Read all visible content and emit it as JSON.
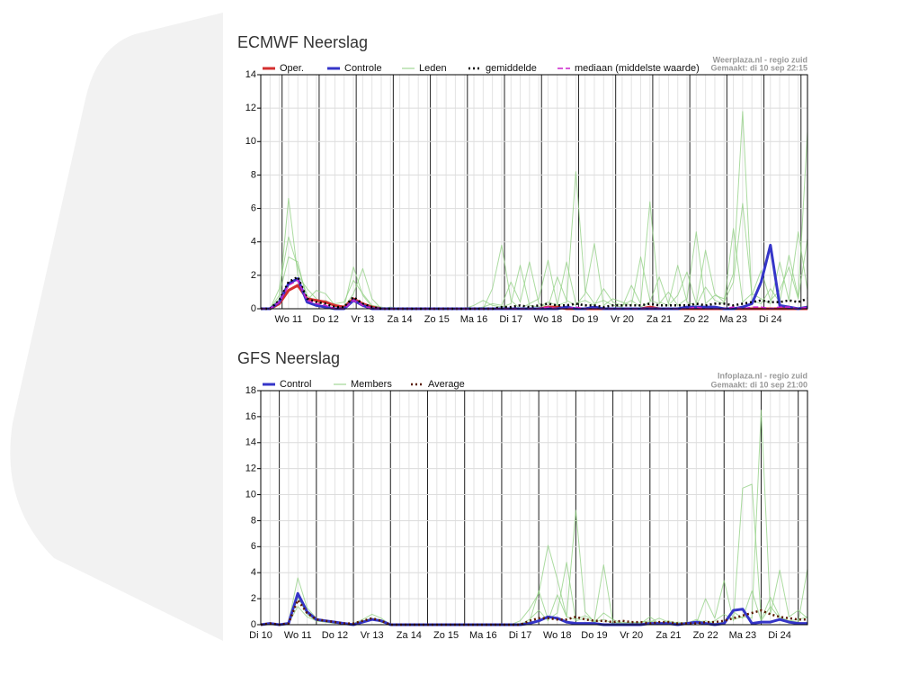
{
  "chart_data": [
    {
      "type": "line",
      "title": "ECMWF Neerslag",
      "annotations": [
        "Weerplaza.nl - regio zuid",
        "Gemaakt: di 10 sep 22:15"
      ],
      "categories": [
        null,
        null,
        null,
        "Wo 11",
        null,
        null,
        null,
        "Do 12",
        null,
        null,
        null,
        "Vr 13",
        null,
        null,
        null,
        "Za 14",
        null,
        null,
        null,
        "Zo 15",
        null,
        null,
        null,
        "Ma 16",
        null,
        null,
        null,
        "Di 17",
        null,
        null,
        null,
        "Wo 18",
        null,
        null,
        null,
        "Do 19",
        null,
        null,
        null,
        "Vr 20",
        null,
        null,
        null,
        "Za 21",
        null,
        null,
        null,
        "Zo 22",
        null,
        null,
        null,
        "Ma 23",
        null,
        null,
        null,
        "Di 24",
        null,
        null,
        null,
        null
      ],
      "ylim": [
        0,
        14
      ],
      "yticks": [
        0,
        2,
        4,
        6,
        8,
        10,
        12,
        14
      ],
      "grid": true,
      "series": [
        {
          "name": "Oper.",
          "color": "#d42f2f",
          "width": 3,
          "values": [
            0,
            0,
            0.3,
            1.1,
            1.4,
            0.6,
            0.5,
            0.4,
            0.2,
            0.1,
            0.6,
            0.3,
            0.1,
            0,
            0,
            0,
            0,
            0,
            0,
            0,
            0,
            0,
            0,
            0,
            0,
            0,
            0,
            0,
            0,
            0,
            0,
            0.1,
            0.1,
            0,
            0,
            0,
            0,
            0,
            0,
            0,
            0,
            0,
            0.1,
            0,
            0,
            0,
            0,
            0,
            0,
            0,
            0,
            0,
            0,
            0,
            0,
            0,
            0,
            0,
            0,
            0
          ]
        },
        {
          "name": "Controle",
          "color": "#3535c8",
          "width": 3,
          "values": [
            0,
            0,
            0.4,
            1.5,
            1.8,
            0.4,
            0.2,
            0.1,
            0,
            0,
            0.5,
            0.2,
            0,
            0,
            0,
            0,
            0,
            0,
            0,
            0,
            0,
            0,
            0,
            0,
            0,
            0,
            0,
            0,
            0,
            0,
            0,
            0,
            0,
            0.1,
            0,
            0,
            0.1,
            0,
            0,
            0,
            0,
            0,
            0,
            0,
            0,
            0,
            0.1,
            0.1,
            0.1,
            0.1,
            0,
            0,
            0.1,
            0.3,
            1.6,
            3.8,
            0.2,
            0.1,
            0,
            0.1
          ]
        },
        {
          "name": "Leden",
          "color": "#8fcf80",
          "width": 1,
          "values": [
            0,
            0,
            1.2,
            4.3,
            2.5,
            0.8,
            0.4,
            0.5,
            0.2,
            0.1,
            0.9,
            2.4,
            0.6,
            0,
            0,
            0,
            0,
            0,
            0,
            0,
            0,
            0,
            0,
            0,
            0,
            1.2,
            3.8,
            0.5,
            0,
            0.3,
            0.6,
            2.9,
            0.2,
            0.4,
            8.2,
            1.1,
            0.3,
            0.5,
            0.2,
            0.1,
            1.4,
            0.3,
            6.4,
            0.4,
            0.2,
            0.8,
            2.2,
            0.3,
            3.5,
            0.9,
            0.4,
            1.6,
            6.3,
            0.8,
            2.3,
            0.5,
            1.1,
            2.5,
            0.6,
            4.2
          ]
        },
        {
          "name": "Leden",
          "color": "#8fcf80",
          "width": 1,
          "values": [
            0,
            0,
            0.6,
            6.6,
            2.0,
            1.2,
            0.6,
            0.3,
            0.3,
            0.4,
            1.7,
            0.9,
            0.2,
            0.1,
            0,
            0,
            0,
            0,
            0,
            0,
            0,
            0,
            0,
            0,
            0.1,
            0.3,
            0.2,
            1.6,
            0.4,
            2.8,
            0.3,
            0.1,
            1.9,
            0.5,
            0.2,
            0.9,
            3.9,
            0.2,
            0.6,
            0.4,
            0.2,
            3.1,
            0.5,
            0.3,
            1.0,
            0.2,
            0.6,
            4.6,
            0.3,
            0.8,
            0.6,
            2.1,
            11.8,
            0.5,
            0.3,
            1.2,
            0.4,
            3.2,
            0.7,
            10.6
          ]
        },
        {
          "name": "Leden",
          "color": "#8fcf80",
          "width": 1,
          "values": [
            0,
            0,
            0.8,
            3.1,
            2.8,
            0.5,
            1.1,
            0.9,
            0.2,
            0.1,
            2.5,
            0.8,
            0.1,
            0,
            0.1,
            0,
            0,
            0,
            0,
            0,
            0,
            0,
            0,
            0.2,
            0.5,
            0.2,
            0.1,
            0.3,
            2.6,
            0.2,
            0.1,
            0.4,
            0.2,
            2.8,
            0.3,
            0.5,
            0.2,
            1.2,
            0.4,
            0.2,
            0.5,
            0.1,
            0.4,
            1.9,
            0.3,
            2.6,
            0.4,
            0.2,
            1.3,
            0.5,
            0.3,
            4.8,
            0.4,
            0.9,
            0.6,
            0.3,
            2.8,
            0.5,
            4.6,
            1.1
          ]
        },
        {
          "name": "gemiddelde",
          "color": "#000000",
          "width": 2.5,
          "style": "dotted",
          "values": [
            0,
            0,
            0.5,
            1.6,
            1.9,
            0.6,
            0.4,
            0.3,
            0.1,
            0.1,
            0.7,
            0.3,
            0.1,
            0,
            0,
            0,
            0,
            0,
            0,
            0,
            0,
            0,
            0,
            0,
            0,
            0,
            0.1,
            0.1,
            0.2,
            0.1,
            0.2,
            0.3,
            0.2,
            0.2,
            0.3,
            0.2,
            0.2,
            0.1,
            0.2,
            0.2,
            0.2,
            0.2,
            0.3,
            0.2,
            0.2,
            0.2,
            0.2,
            0.3,
            0.2,
            0.3,
            0.3,
            0.2,
            0.3,
            0.4,
            0.5,
            0.4,
            0.4,
            0.5,
            0.4,
            0.6
          ]
        },
        {
          "name": "mediaan (middelste waarde)",
          "color": "#cc22cc",
          "width": 1.5,
          "style": "dashed",
          "values": [
            0,
            0,
            0.4,
            1.4,
            1.7,
            0.5,
            0.3,
            0.2,
            0,
            0,
            0.5,
            0.2,
            0,
            0,
            0,
            0,
            0,
            0,
            0,
            0,
            0,
            0,
            0,
            0,
            0,
            0,
            0,
            0,
            0,
            0,
            0,
            0.1,
            0,
            0,
            0.1,
            0,
            0,
            0,
            0,
            0,
            0,
            0,
            0,
            0,
            0,
            0,
            0,
            0.1,
            0,
            0,
            0,
            0.1,
            0,
            0.1,
            0.1,
            0,
            0.1,
            0.1,
            0,
            0.1
          ]
        }
      ]
    },
    {
      "type": "line",
      "title": "GFS Neerslag",
      "annotations": [
        "Infoplaza.nl - regio zuid",
        "Gemaakt: di 10 sep 21:00"
      ],
      "categories": [
        "Di 10",
        null,
        null,
        null,
        "Wo 11",
        null,
        null,
        null,
        "Do 12",
        null,
        null,
        null,
        "Vr 13",
        null,
        null,
        null,
        "Za 14",
        null,
        null,
        null,
        "Zo 15",
        null,
        null,
        null,
        "Ma 16",
        null,
        null,
        null,
        "Di 17",
        null,
        null,
        null,
        "Wo 18",
        null,
        null,
        null,
        "Do 19",
        null,
        null,
        null,
        "Vr 20",
        null,
        null,
        null,
        "Za 21",
        null,
        null,
        null,
        "Zo 22",
        null,
        null,
        null,
        "Ma 23",
        null,
        null,
        null,
        "Di 24",
        null,
        null,
        null
      ],
      "ylim": [
        0,
        18
      ],
      "yticks": [
        0,
        2,
        4,
        6,
        8,
        10,
        12,
        14,
        16,
        18
      ],
      "grid": true,
      "series": [
        {
          "name": "Control",
          "color": "#3535c8",
          "width": 3,
          "values": [
            0,
            0.1,
            0,
            0.1,
            2.4,
            1.0,
            0.4,
            0.3,
            0.2,
            0.1,
            0,
            0.2,
            0.4,
            0.3,
            0,
            0,
            0,
            0,
            0,
            0,
            0,
            0,
            0,
            0,
            0,
            0,
            0,
            0,
            0,
            0.1,
            0.3,
            0.6,
            0.5,
            0.2,
            0.1,
            0.1,
            0.1,
            0,
            0,
            0,
            0,
            0,
            0.1,
            0.1,
            0.1,
            0,
            0.1,
            0.2,
            0.1,
            0,
            0.1,
            1.1,
            1.2,
            0.1,
            0.2,
            0.2,
            0.4,
            0.2,
            0.1,
            0.1
          ]
        },
        {
          "name": "Members",
          "color": "#8fcf80",
          "width": 1,
          "values": [
            0,
            0.1,
            0,
            0.2,
            3.6,
            1.3,
            0.5,
            0.3,
            0.2,
            0.1,
            0.1,
            0.4,
            0.8,
            0.5,
            0,
            0,
            0,
            0,
            0,
            0,
            0,
            0,
            0,
            0,
            0,
            0,
            0,
            0,
            0.3,
            1.2,
            2.4,
            6.1,
            3.5,
            0.6,
            8.8,
            1.0,
            0.2,
            0.4,
            0.1,
            0.2,
            0.1,
            0.2,
            0.3,
            0.1,
            0.3,
            0.1,
            0.2,
            0.1,
            2.0,
            0.5,
            3.4,
            0.3,
            10.5,
            10.8,
            0.4,
            2.1,
            0.6,
            0.3,
            0.2,
            4.3
          ]
        },
        {
          "name": "Members",
          "color": "#8fcf80",
          "width": 1,
          "values": [
            0,
            0.1,
            0,
            0.1,
            2.1,
            0.8,
            0.3,
            0.2,
            0.1,
            0.1,
            0.1,
            0.3,
            0.5,
            0.2,
            0,
            0,
            0,
            0,
            0,
            0,
            0,
            0,
            0,
            0,
            0,
            0,
            0,
            0,
            0.1,
            0.2,
            2.6,
            0.4,
            0.9,
            4.8,
            0.3,
            0.5,
            0.2,
            0.9,
            0.4,
            0.1,
            0.2,
            0.1,
            0.6,
            0.1,
            0.1,
            0.2,
            0.1,
            0.4,
            0.1,
            0.3,
            0.8,
            0.4,
            0.6,
            0.5,
            16.5,
            0.8,
            4.2,
            0.6,
            1.1,
            0.5
          ]
        },
        {
          "name": "Members",
          "color": "#8fcf80",
          "width": 1,
          "values": [
            0,
            0.1,
            0,
            0.1,
            1.4,
            0.6,
            0.3,
            0.2,
            0.2,
            0.1,
            0,
            0.2,
            0.4,
            0.2,
            0,
            0,
            0,
            0,
            0,
            0,
            0,
            0,
            0,
            0,
            0,
            0,
            0,
            0,
            0,
            0.4,
            1.1,
            0.3,
            2.3,
            0.6,
            0.4,
            0.7,
            0.3,
            4.6,
            0.2,
            0.1,
            0.1,
            0.1,
            0.2,
            0.5,
            0.2,
            0.1,
            0.1,
            0.2,
            0.3,
            0.1,
            0.2,
            1.0,
            0.5,
            2.6,
            0.3,
            1.4,
            0.5,
            0.3,
            0.4,
            0.6
          ]
        },
        {
          "name": "Average",
          "color": "#5a1a00",
          "width": 2.5,
          "style": "dotted",
          "values": [
            0,
            0.1,
            0,
            0.1,
            1.9,
            0.9,
            0.4,
            0.3,
            0.2,
            0.1,
            0.1,
            0.3,
            0.5,
            0.3,
            0,
            0,
            0,
            0,
            0,
            0,
            0,
            0,
            0,
            0,
            0,
            0,
            0,
            0,
            0,
            0.3,
            0.5,
            0.5,
            0.4,
            0.4,
            0.6,
            0.4,
            0.3,
            0.3,
            0.2,
            0.3,
            0.2,
            0.2,
            0.1,
            0.2,
            0.2,
            0.1,
            0.1,
            0.1,
            0.2,
            0.2,
            0.3,
            0.5,
            0.7,
            0.9,
            1.1,
            0.8,
            0.6,
            0.5,
            0.4,
            0.4
          ]
        }
      ]
    }
  ]
}
